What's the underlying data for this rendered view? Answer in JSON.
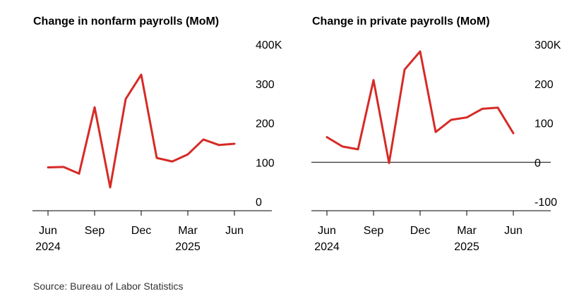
{
  "source": "Source: Bureau of Labor Statistics",
  "colors": {
    "line": "#d62b26",
    "axis": "#000000",
    "text": "#000000"
  },
  "chart_data": [
    {
      "type": "line",
      "title": "Change in nonfarm payrolls (MoM)",
      "x": [
        "2024-06",
        "2024-07",
        "2024-08",
        "2024-09",
        "2024-10",
        "2024-11",
        "2024-12",
        "2025-01",
        "2025-02",
        "2025-03",
        "2025-04",
        "2025-05",
        "2025-06"
      ],
      "x_tick_labels": [
        {
          "x": "2024-06",
          "line1": "Jun",
          "line2": "2024"
        },
        {
          "x": "2024-09",
          "line1": "Sep",
          "line2": ""
        },
        {
          "x": "2024-12",
          "line1": "Dec",
          "line2": ""
        },
        {
          "x": "2025-03",
          "line1": "Mar",
          "line2": "2025"
        },
        {
          "x": "2025-06",
          "line1": "Jun",
          "line2": ""
        }
      ],
      "series": [
        {
          "values": [
            87,
            88,
            71,
            240,
            36,
            261,
            323,
            111,
            102,
            120,
            158,
            144,
            147
          ]
        }
      ],
      "ylim": [
        0,
        400
      ],
      "y_ticks": [
        {
          "value": 400,
          "label": "400K"
        },
        {
          "value": 300,
          "label": "300"
        },
        {
          "value": 200,
          "label": "200"
        },
        {
          "value": 100,
          "label": "100"
        },
        {
          "value": 0,
          "label": "0"
        }
      ],
      "zero_line": false,
      "grid": false,
      "legend": "none"
    },
    {
      "type": "line",
      "title": "Change in private payrolls (MoM)",
      "x": [
        "2024-06",
        "2024-07",
        "2024-08",
        "2024-09",
        "2024-10",
        "2024-11",
        "2024-12",
        "2025-01",
        "2025-02",
        "2025-03",
        "2025-04",
        "2025-05",
        "2025-06"
      ],
      "x_tick_labels": [
        {
          "x": "2024-06",
          "line1": "Jun",
          "line2": "2024"
        },
        {
          "x": "2024-09",
          "line1": "Sep",
          "line2": ""
        },
        {
          "x": "2024-12",
          "line1": "Dec",
          "line2": ""
        },
        {
          "x": "2025-03",
          "line1": "Mar",
          "line2": "2025"
        },
        {
          "x": "2025-06",
          "line1": "Jun",
          "line2": ""
        }
      ],
      "series": [
        {
          "values": [
            64,
            40,
            33,
            209,
            -2,
            236,
            282,
            77,
            108,
            114,
            136,
            139,
            74
          ]
        }
      ],
      "ylim": [
        -100,
        300
      ],
      "y_ticks": [
        {
          "value": 300,
          "label": "300K"
        },
        {
          "value": 200,
          "label": "200"
        },
        {
          "value": 100,
          "label": "100"
        },
        {
          "value": 0,
          "label": "0"
        },
        {
          "value": -100,
          "label": "-100"
        }
      ],
      "zero_line": true,
      "grid": false,
      "legend": "none"
    }
  ]
}
